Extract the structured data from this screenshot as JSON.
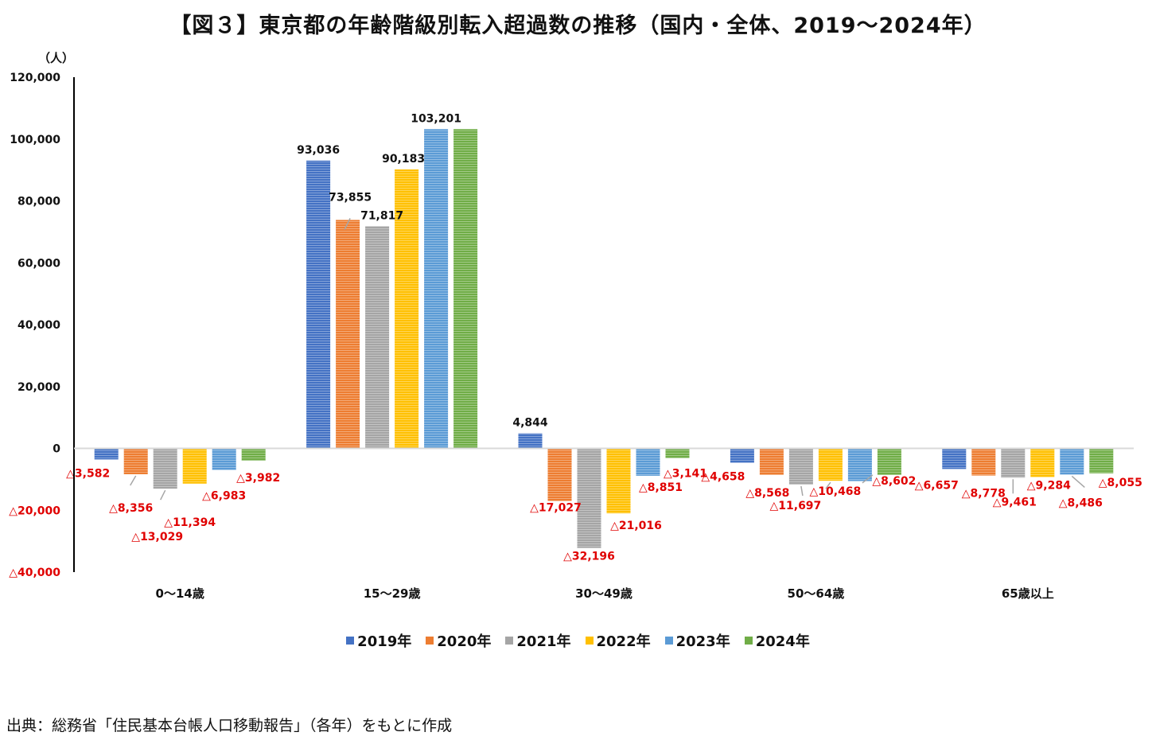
{
  "chart_data": {
    "type": "bar",
    "title": "【図３】東京都の年齢階級別転入超過数の推移（国内・全体、2019〜2024年）",
    "ylabel": "（人）",
    "ylim": [
      -40000,
      120000
    ],
    "yticks": [
      {
        "value": 120000,
        "label": "120,000"
      },
      {
        "value": 100000,
        "label": "100,000"
      },
      {
        "value": 80000,
        "label": "80,000"
      },
      {
        "value": 60000,
        "label": "60,000"
      },
      {
        "value": 40000,
        "label": "40,000"
      },
      {
        "value": 20000,
        "label": "20,000"
      },
      {
        "value": 0,
        "label": "0"
      },
      {
        "value": -20000,
        "label": "△20,000"
      },
      {
        "value": -40000,
        "label": "△40,000"
      }
    ],
    "categories": [
      "0〜14歳",
      "15〜29歳",
      "30〜49歳",
      "50〜64歳",
      "65歳以上"
    ],
    "series": [
      {
        "name": "2019年",
        "color": "#4472c4",
        "values": [
          -3582,
          93036,
          4844,
          -4658,
          -6657
        ],
        "labels": [
          "△3,582",
          "93,036",
          "4,844",
          "△4,658",
          "△6,657"
        ]
      },
      {
        "name": "2020年",
        "color": "#ed7d31",
        "values": [
          -8356,
          73855,
          -17027,
          -8568,
          -8778
        ],
        "labels": [
          "△8,356",
          "73,855",
          "△17,027",
          "△8,568",
          "△8,778"
        ]
      },
      {
        "name": "2021年",
        "color": "#a5a5a5",
        "values": [
          -13029,
          71817,
          -32196,
          -11697,
          -9461
        ],
        "labels": [
          "△13,029",
          "71,817",
          "△32,196",
          "△11,697",
          "△9,461"
        ]
      },
      {
        "name": "2022年",
        "color": "#ffc000",
        "values": [
          -11394,
          90183,
          -21016,
          -10468,
          -9284
        ],
        "labels": [
          "△11,394",
          "90,183",
          "△21,016",
          "△10,468",
          "△9,284"
        ]
      },
      {
        "name": "2023年",
        "color": "#5b9bd5",
        "values": [
          -6983,
          103201,
          -8851,
          -10569,
          -8486
        ],
        "labels": [
          "△6,983",
          "103,201",
          "△8,851",
          "",
          "△8,486"
        ]
      },
      {
        "name": "2024年",
        "color": "#70ad47",
        "values": [
          -3982,
          103201,
          -3141,
          -8602,
          -8055
        ],
        "labels": [
          "△3,982",
          "",
          "△3,141",
          "△8,602",
          "△8,055"
        ]
      }
    ],
    "negative_label_color": "#e00000",
    "legend_position": "bottom"
  },
  "source": "出典：総務省「住民基本台帳人口移動報告」（各年）をもとに作成"
}
